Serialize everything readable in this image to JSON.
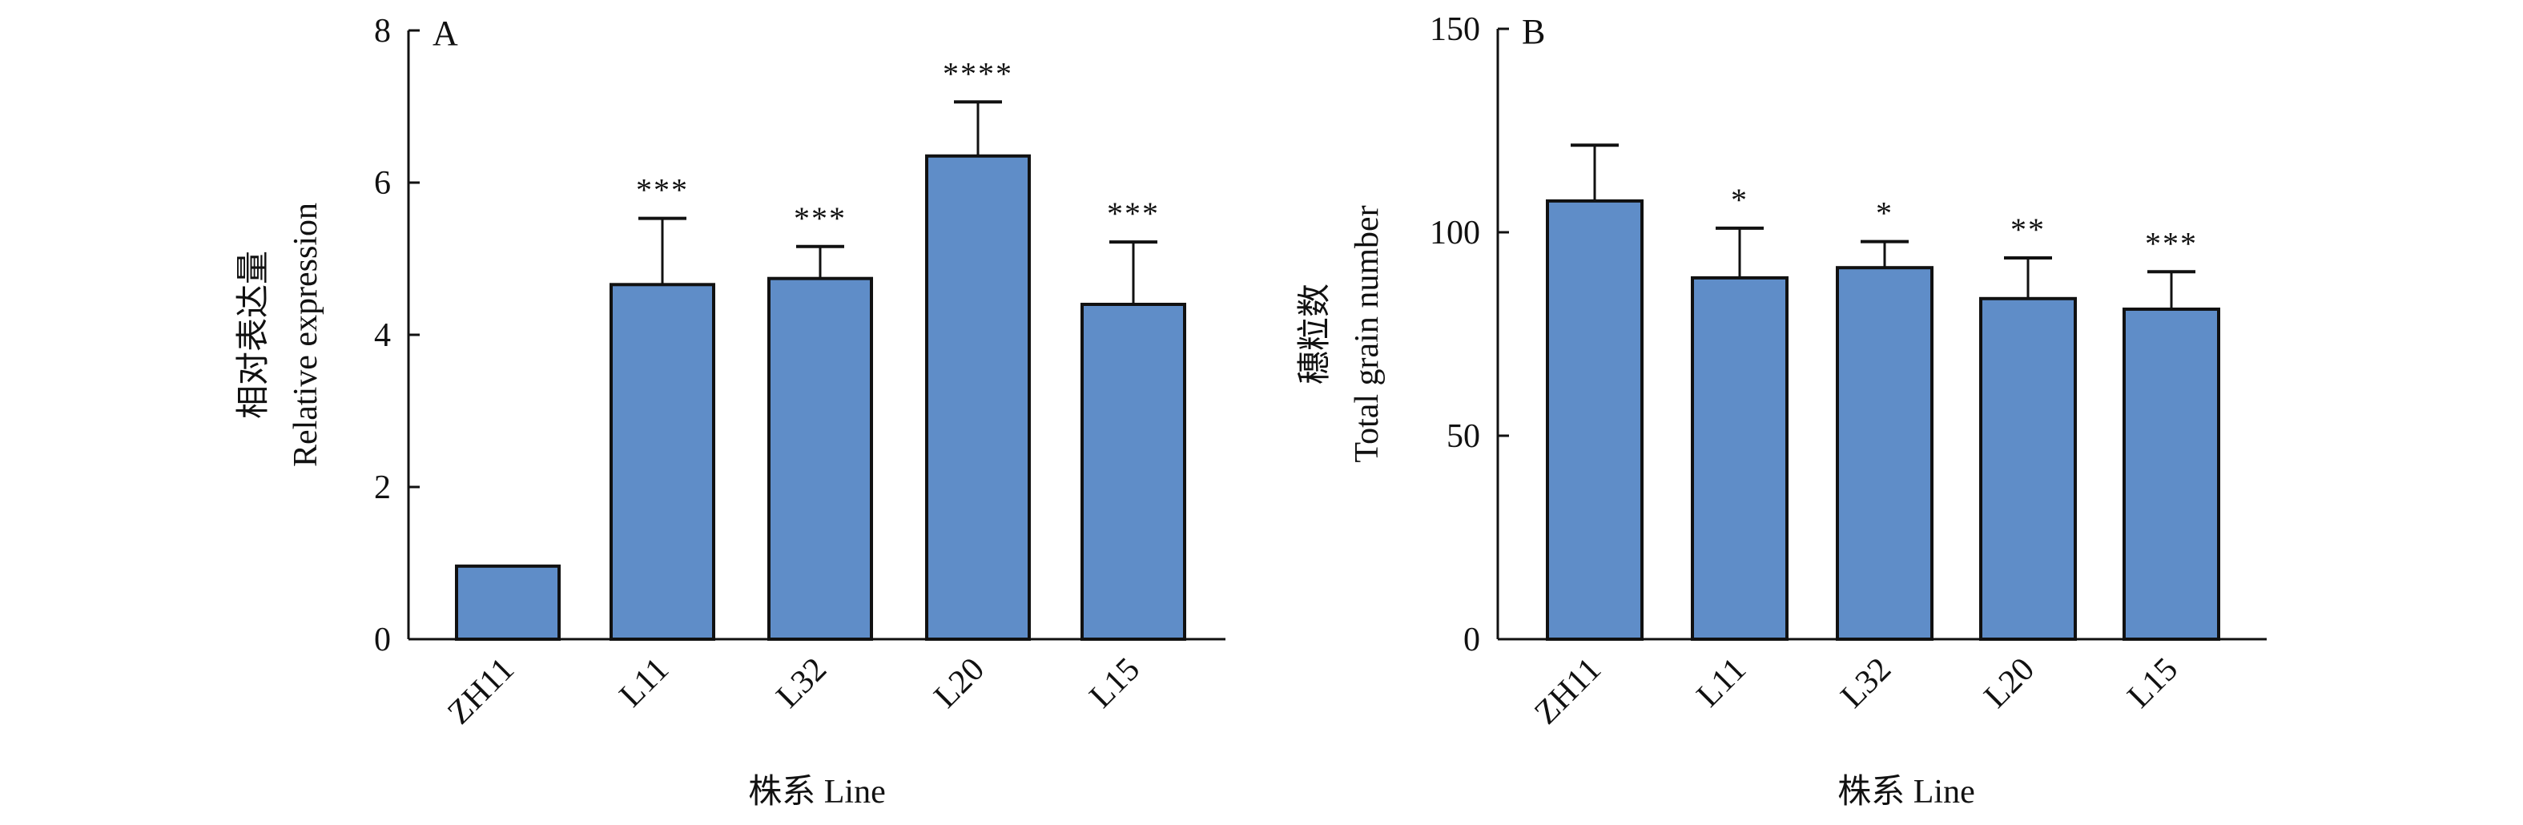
{
  "chart_data": [
    {
      "type": "bar",
      "panel_label": "A",
      "categories": [
        "ZH11",
        "L11",
        "L32",
        "L20",
        "L15"
      ],
      "values": [
        0.96,
        4.66,
        4.74,
        6.35,
        4.4
      ],
      "error_upper": [
        0.96,
        5.53,
        5.16,
        7.06,
        5.22
      ],
      "significance": [
        "",
        "***",
        "***",
        "****",
        "***"
      ],
      "ylabel_cn": "相对表达量",
      "ylabel": "Relative expression",
      "xlabel": "株系 Line",
      "ylim": [
        0,
        8
      ],
      "yticks": [
        0,
        2,
        4,
        6,
        8
      ],
      "grid": false,
      "bar_color": "#5f8dc8"
    },
    {
      "type": "bar",
      "panel_label": "B",
      "categories": [
        "ZH11",
        "L11",
        "L32",
        "L20",
        "L15"
      ],
      "values": [
        107.7,
        88.8,
        91.3,
        83.7,
        81.1
      ],
      "error_upper": [
        121.4,
        101.0,
        97.7,
        93.7,
        90.3
      ],
      "significance": [
        "",
        "*",
        "*",
        "**",
        "***"
      ],
      "ylabel_cn": "穗粒数",
      "ylabel": "Total grain number",
      "xlabel": "株系 Line",
      "ylim": [
        0,
        150
      ],
      "yticks": [
        0,
        50,
        100,
        150
      ],
      "grid": false,
      "bar_color": "#5f8dc8"
    }
  ]
}
